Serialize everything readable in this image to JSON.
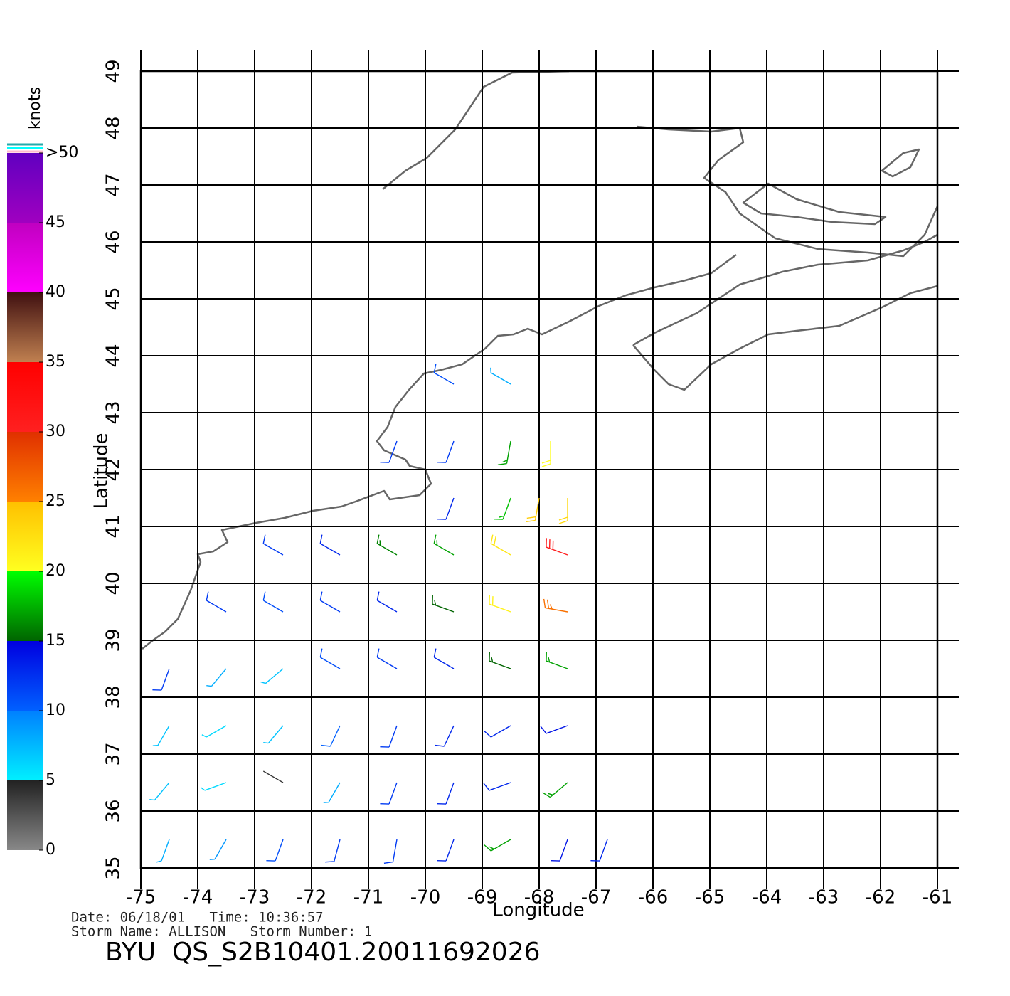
{
  "chart_data": {
    "type": "wind-barb",
    "xlabel": "Longitude",
    "ylabel": "Latitude",
    "xlim": [
      -75,
      -61
    ],
    "ylim": [
      35,
      49
    ],
    "xticks": [
      -75,
      -74,
      -73,
      -72,
      -71,
      -70,
      -69,
      -68,
      -67,
      -66,
      -65,
      -64,
      -63,
      -62,
      -61
    ],
    "yticks": [
      35,
      36,
      37,
      38,
      39,
      40,
      41,
      42,
      43,
      44,
      45,
      46,
      47,
      48,
      49
    ],
    "grid": true,
    "colorbar": {
      "label": "knots",
      "lim": [
        0,
        50
      ],
      "ticks": [
        0,
        5,
        10,
        15,
        20,
        25,
        30,
        35,
        40,
        45,
        {
          "value": 50,
          "label": ">50"
        }
      ],
      "band_colors": [
        [
          "#888888",
          "#222222"
        ],
        [
          "#00f0ff",
          "#0080ff"
        ],
        [
          "#0060ff",
          "#0000e0"
        ],
        [
          "#006400",
          "#00ff00"
        ],
        [
          "#ffff20",
          "#ffc000"
        ],
        [
          "#ff8000",
          "#e03000"
        ],
        [
          "#ff2020",
          "#ff0000"
        ],
        [
          "#c08050",
          "#401010"
        ],
        [
          "#ff00ff",
          "#c000c0"
        ],
        [
          "#a000c0",
          "#6000c0"
        ]
      ]
    },
    "wind": {
      "lon": [
        -74.5,
        -73.5,
        -72.5,
        -71.5,
        -70.5,
        -69.5,
        -68.5,
        -67.5,
        -66.8,
        -74.5,
        -73.5,
        -72.5,
        -71.5,
        -70.5,
        -69.5,
        -68.5,
        -67.5,
        -74.5,
        -73.5,
        -72.5,
        -71.5,
        -70.5,
        -69.5,
        -68.5,
        -67.5,
        -74.5,
        -73.5,
        -72.5,
        -71.5,
        -70.5,
        -69.5,
        -68.5,
        -67.5,
        -73.5,
        -72.5,
        -71.5,
        -70.5,
        -69.5,
        -68.5,
        -67.5,
        -72.5,
        -71.5,
        -70.5,
        -69.5,
        -68.5,
        -67.5,
        -69.5,
        -68.5,
        -68.0,
        -67.5,
        -70.5,
        -69.5,
        -68.5,
        -67.8,
        -69.5,
        -68.5
      ],
      "lat": [
        35.5,
        35.5,
        35.5,
        35.5,
        35.5,
        35.5,
        35.5,
        35.5,
        35.5,
        36.5,
        36.5,
        36.5,
        36.5,
        36.5,
        36.5,
        36.5,
        36.5,
        37.5,
        37.5,
        37.5,
        37.5,
        37.5,
        37.5,
        37.5,
        37.5,
        38.5,
        38.5,
        38.5,
        38.5,
        38.5,
        38.5,
        38.5,
        38.5,
        39.5,
        39.5,
        39.5,
        39.5,
        39.5,
        39.5,
        39.5,
        40.5,
        40.5,
        40.5,
        40.5,
        40.5,
        40.5,
        41.5,
        41.5,
        41.5,
        41.5,
        42.5,
        42.5,
        42.5,
        42.5,
        43.5,
        43.5
      ],
      "speed": [
        8,
        9,
        11,
        12,
        12,
        13,
        17,
        14,
        13,
        7,
        6,
        4,
        8,
        12,
        13,
        13,
        17,
        7,
        6,
        7,
        10,
        12,
        13,
        13,
        14,
        12,
        8,
        7,
        11,
        12,
        13,
        15,
        17,
        12,
        11,
        12,
        13,
        15,
        21,
        26,
        12,
        13,
        16,
        17,
        22,
        30,
        13,
        18,
        24,
        23,
        12,
        12,
        17,
        20,
        11,
        8
      ],
      "direction": [
        200,
        210,
        200,
        195,
        190,
        200,
        240,
        200,
        200,
        220,
        250,
        300,
        210,
        200,
        200,
        250,
        230,
        210,
        240,
        220,
        205,
        200,
        205,
        240,
        250,
        200,
        220,
        230,
        300,
        300,
        300,
        290,
        290,
        300,
        300,
        300,
        300,
        290,
        290,
        280,
        300,
        300,
        300,
        300,
        300,
        290,
        200,
        200,
        190,
        180,
        200,
        200,
        190,
        180,
        300,
        300
      ]
    },
    "footer": {
      "line1": "Date: 06/18/01   Time: 10:36:57",
      "line2": "Storm Name: ALLISON   Storm Number: 1",
      "id": "BYU  QS_S2B10401.20011692026"
    }
  }
}
